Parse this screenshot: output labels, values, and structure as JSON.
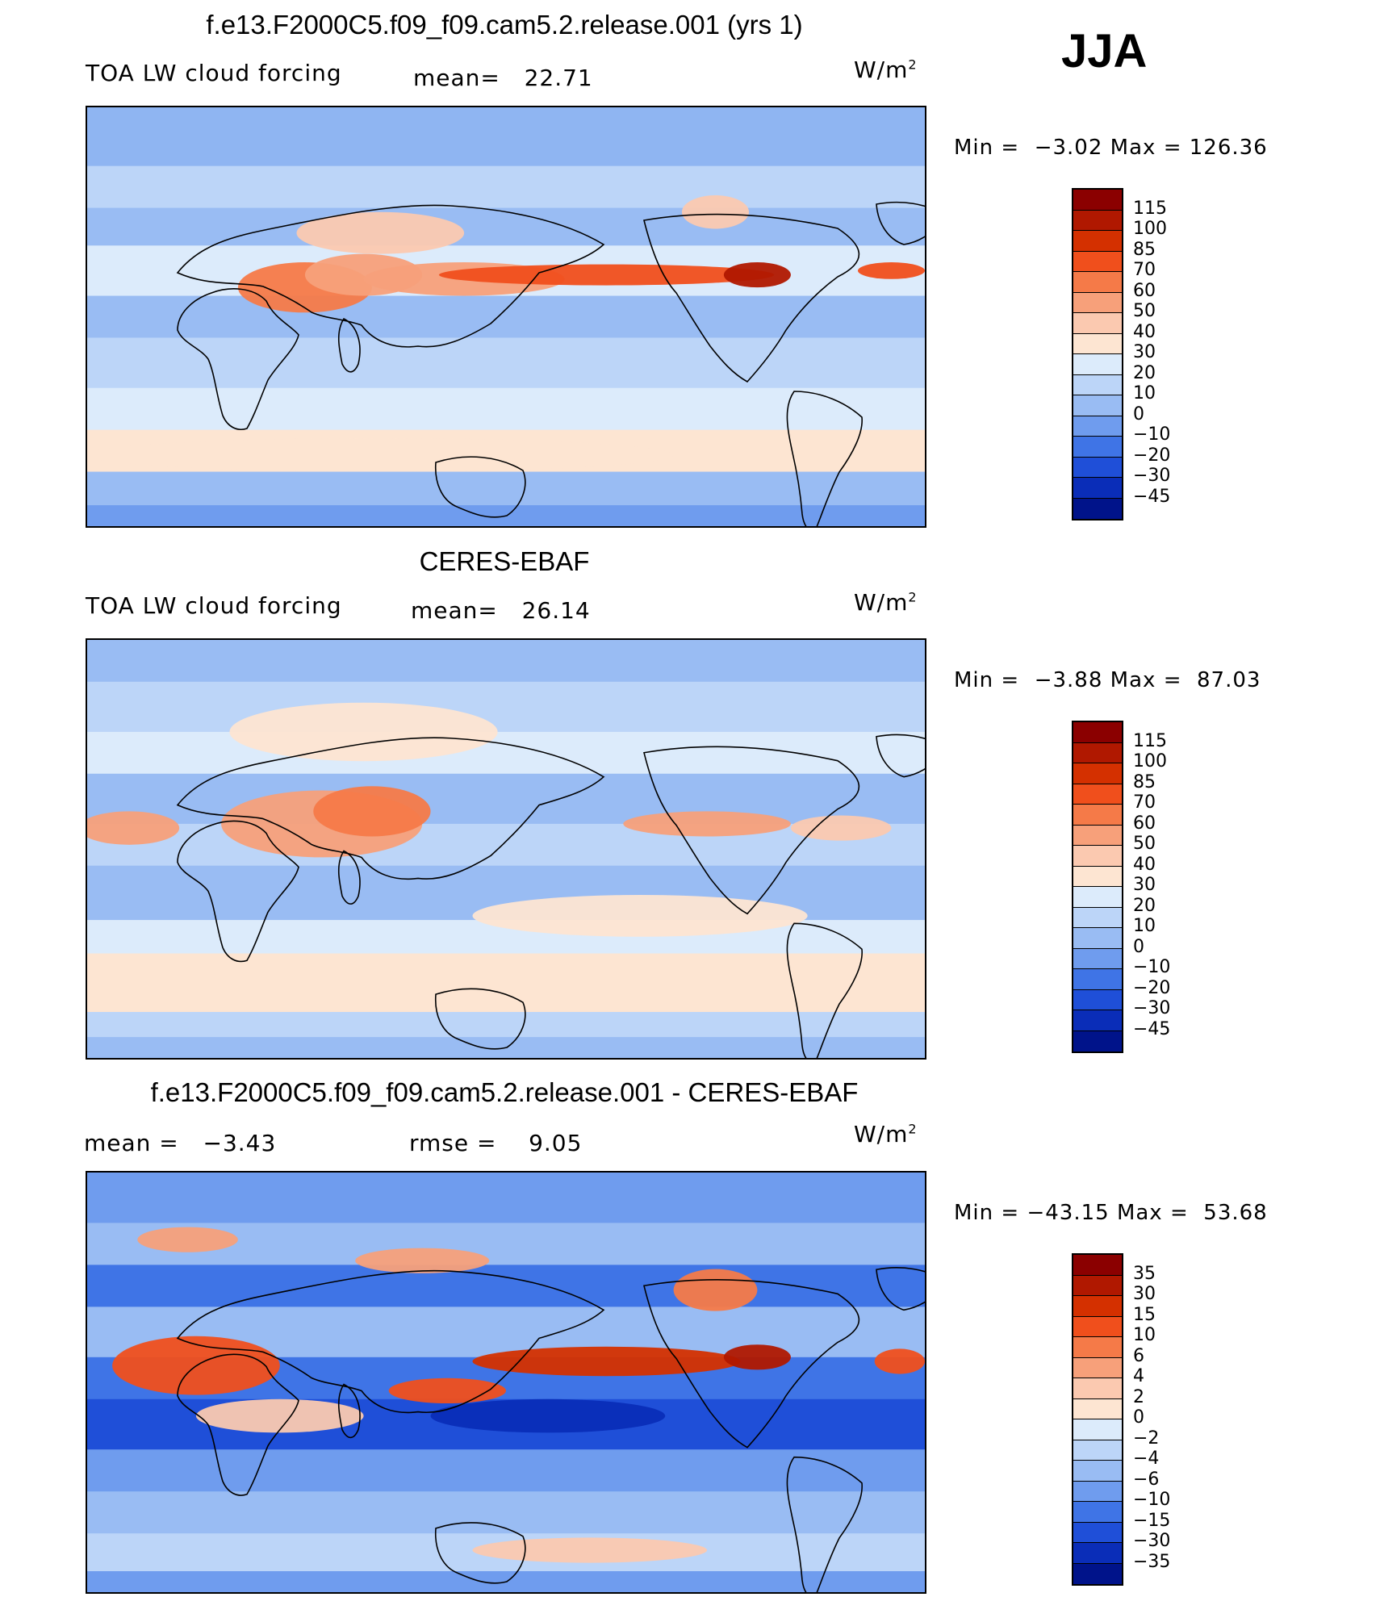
{
  "season": "JJA",
  "panels": [
    {
      "title": "f.e13.F2000C5.f09_f09.cam5.2.release.001 (yrs 1)",
      "left_label": "TOA LW cloud forcing",
      "mid_label": "mean=",
      "mid_value": "22.71",
      "unit_base": "W/m",
      "unit_exp": "2",
      "min_label": "Min =",
      "min_value": "−3.02",
      "max_label": "Max =",
      "max_value": "126.36",
      "legend_levels": [
        "115",
        "100",
        "85",
        "70",
        "60",
        "50",
        "40",
        "30",
        "20",
        "10",
        "0",
        "−10",
        "−20",
        "−30",
        "−45"
      ],
      "legend_colors": [
        "#8b0000",
        "#b01800",
        "#d43000",
        "#f04f1c",
        "#f57a48",
        "#f7a07a",
        "#fbc9b0",
        "#fde5d2",
        "#dcebfb",
        "#bcd5f8",
        "#99bcf3",
        "#6f9cee",
        "#3f74e6",
        "#1f4fd8",
        "#0a2db8",
        "#00138a"
      ],
      "map_style": "full"
    },
    {
      "title": "CERES-EBAF",
      "left_label": "TOA LW cloud forcing",
      "mid_label": "mean=",
      "mid_value": "26.14",
      "unit_base": "W/m",
      "unit_exp": "2",
      "min_label": "Min =",
      "min_value": "−3.88",
      "max_label": "Max =",
      "max_value": "87.03",
      "legend_levels": [
        "115",
        "100",
        "85",
        "70",
        "60",
        "50",
        "40",
        "30",
        "20",
        "10",
        "0",
        "−10",
        "−20",
        "−30",
        "−45"
      ],
      "legend_colors": [
        "#8b0000",
        "#b01800",
        "#d43000",
        "#f04f1c",
        "#f57a48",
        "#f7a07a",
        "#fbc9b0",
        "#fde5d2",
        "#dcebfb",
        "#bcd5f8",
        "#99bcf3",
        "#6f9cee",
        "#3f74e6",
        "#1f4fd8",
        "#0a2db8",
        "#00138a"
      ],
      "map_style": "obs"
    },
    {
      "title": "f.e13.F2000C5.f09_f09.cam5.2.release.001 - CERES-EBAF",
      "left_label": "mean =",
      "left_value": "−3.43",
      "mid_label": "rmse =",
      "mid_value": "9.05",
      "unit_base": "W/m",
      "unit_exp": "2",
      "min_label": "Min =",
      "min_value": "−43.15",
      "max_label": "Max =",
      "max_value": "53.68",
      "legend_levels": [
        "35",
        "30",
        "15",
        "10",
        "6",
        "4",
        "2",
        "0",
        "−2",
        "−4",
        "−6",
        "−10",
        "−15",
        "−30",
        "−35"
      ],
      "legend_colors": [
        "#8b0000",
        "#b01800",
        "#d43000",
        "#f04f1c",
        "#f57a48",
        "#f7a07a",
        "#fbc9b0",
        "#fde5d2",
        "#dcebfb",
        "#bcd5f8",
        "#99bcf3",
        "#6f9cee",
        "#3f74e6",
        "#1f4fd8",
        "#0a2db8",
        "#00138a"
      ],
      "map_style": "diff"
    }
  ]
}
